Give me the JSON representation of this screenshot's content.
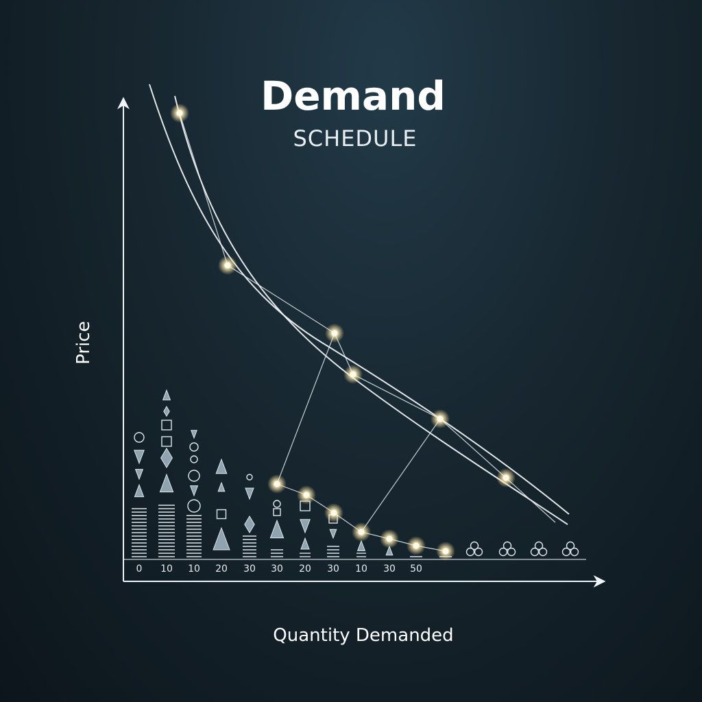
{
  "chart_data": {
    "type": "line",
    "title": "Demand",
    "subtitle": "SCHEDULE",
    "xlabel": "Quantity Demanded",
    "ylabel": "Price",
    "x_tick_labels": [
      "0",
      "10",
      "10",
      "20",
      "30",
      "30",
      "20",
      "30",
      "10",
      "30",
      "50"
    ],
    "grid": false,
    "glow_color": "#fff3c4",
    "line_color": "#f4f7f9",
    "background_color": "#17262f"
  }
}
